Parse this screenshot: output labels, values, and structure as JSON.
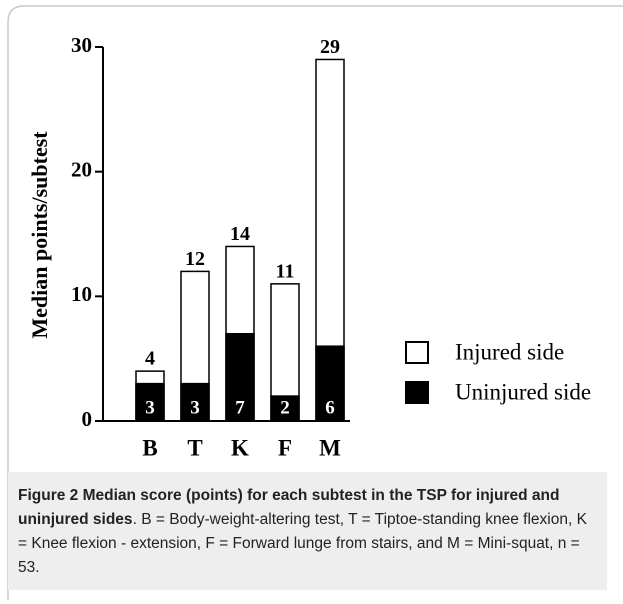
{
  "chart_data": {
    "type": "bar",
    "y_label": "Median points/subtest",
    "categories": [
      "B",
      "T",
      "K",
      "F",
      "M"
    ],
    "series": [
      {
        "name": "Injured side",
        "color": "#ffffff",
        "values": [
          4,
          12,
          14,
          11,
          29
        ]
      },
      {
        "name": "Uninjured side",
        "color": "#000000",
        "values": [
          3,
          3,
          7,
          2,
          6
        ]
      }
    ],
    "ylim": [
      0,
      30
    ],
    "yticks": [
      0,
      10,
      20,
      30
    ],
    "legend": "right"
  },
  "caption": {
    "label": "Figure 2",
    "title": "Median score (points) for each subtest in the TSP for injured and uninjured sides",
    "text": "B = Body-weight-altering test, T = Tiptoe-standing knee flexion, K = Knee flexion - extension, F = Forward lunge from stairs, and M = Mini-squat, n = 53."
  }
}
